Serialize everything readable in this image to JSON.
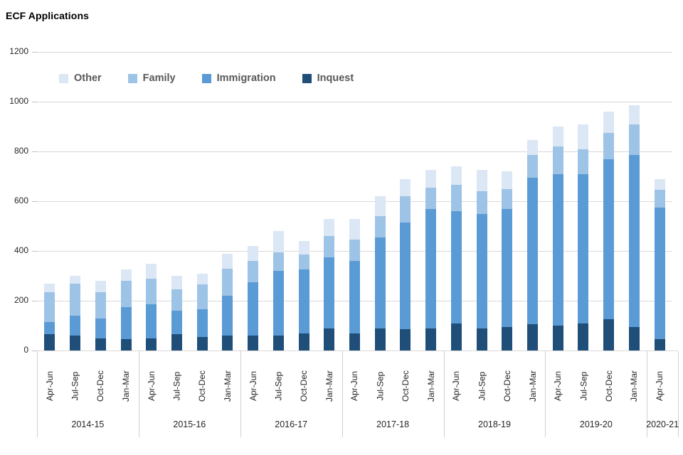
{
  "chart": {
    "title": "ECF Applications"
  },
  "chart_data": {
    "type": "bar",
    "stacked": true,
    "title": "ECF Applications",
    "legend": [
      "Other",
      "Family",
      "Immigration",
      "Inquest"
    ],
    "legend_position": "inside-top-left",
    "grid": true,
    "ylim": [
      0,
      1200
    ],
    "yticks": [
      0,
      200,
      400,
      600,
      800,
      1000,
      1200
    ],
    "year_groups": [
      {
        "label": "2014-15",
        "quarters": [
          "Apr-Jun",
          "Jul-Sep",
          "Oct-Dec",
          "Jan-Mar"
        ]
      },
      {
        "label": "2015-16",
        "quarters": [
          "Apr-Jun",
          "Jul-Sep",
          "Oct-Dec",
          "Jan-Mar"
        ]
      },
      {
        "label": "2016-17",
        "quarters": [
          "Apr-Jun",
          "Jul-Sep",
          "Oct-Dec",
          "Jan-Mar"
        ]
      },
      {
        "label": "2017-18",
        "quarters": [
          "Apr-Jun",
          "Jul-Sep",
          "Oct-Dec",
          "Jan-Mar"
        ]
      },
      {
        "label": "2018-19",
        "quarters": [
          "Apr-Jun",
          "Jul-Sep",
          "Oct-Dec",
          "Jan-Mar"
        ]
      },
      {
        "label": "2019-20",
        "quarters": [
          "Apr-Jun",
          "Jul-Sep",
          "Oct-Dec",
          "Jan-Mar"
        ]
      },
      {
        "label": "2020-21",
        "quarters": [
          "Apr-Jun"
        ]
      }
    ],
    "stack_order_bottom_to_top": [
      "Inquest",
      "Immigration",
      "Family",
      "Other"
    ],
    "series": [
      {
        "name": "Inquest",
        "color": "#1f4e79",
        "values": [
          65,
          60,
          50,
          45,
          50,
          65,
          55,
          60,
          60,
          60,
          70,
          90,
          70,
          90,
          85,
          90,
          110,
          90,
          95,
          105,
          100,
          110,
          125,
          95,
          45
        ]
      },
      {
        "name": "Immigration",
        "color": "#5b9bd5",
        "values": [
          50,
          80,
          80,
          130,
          135,
          95,
          110,
          160,
          215,
          260,
          255,
          285,
          290,
          365,
          430,
          480,
          450,
          460,
          475,
          590,
          610,
          600,
          645,
          690,
          530
        ]
      },
      {
        "name": "Family",
        "color": "#9dc3e6",
        "values": [
          120,
          130,
          105,
          105,
          105,
          85,
          100,
          110,
          85,
          75,
          60,
          85,
          85,
          85,
          105,
          85,
          105,
          90,
          80,
          90,
          110,
          100,
          105,
          125,
          70
        ]
      },
      {
        "name": "Other",
        "color": "#dbe7f4",
        "values": [
          35,
          30,
          45,
          45,
          60,
          55,
          45,
          60,
          60,
          85,
          55,
          70,
          85,
          80,
          70,
          70,
          75,
          85,
          70,
          60,
          80,
          100,
          85,
          75,
          45
        ]
      }
    ]
  },
  "colors": {
    "gridline": "#d9d9d9",
    "axis_text": "#262626",
    "legend_text": "#595959",
    "title_text": "#000000",
    "background": "#ffffff"
  }
}
